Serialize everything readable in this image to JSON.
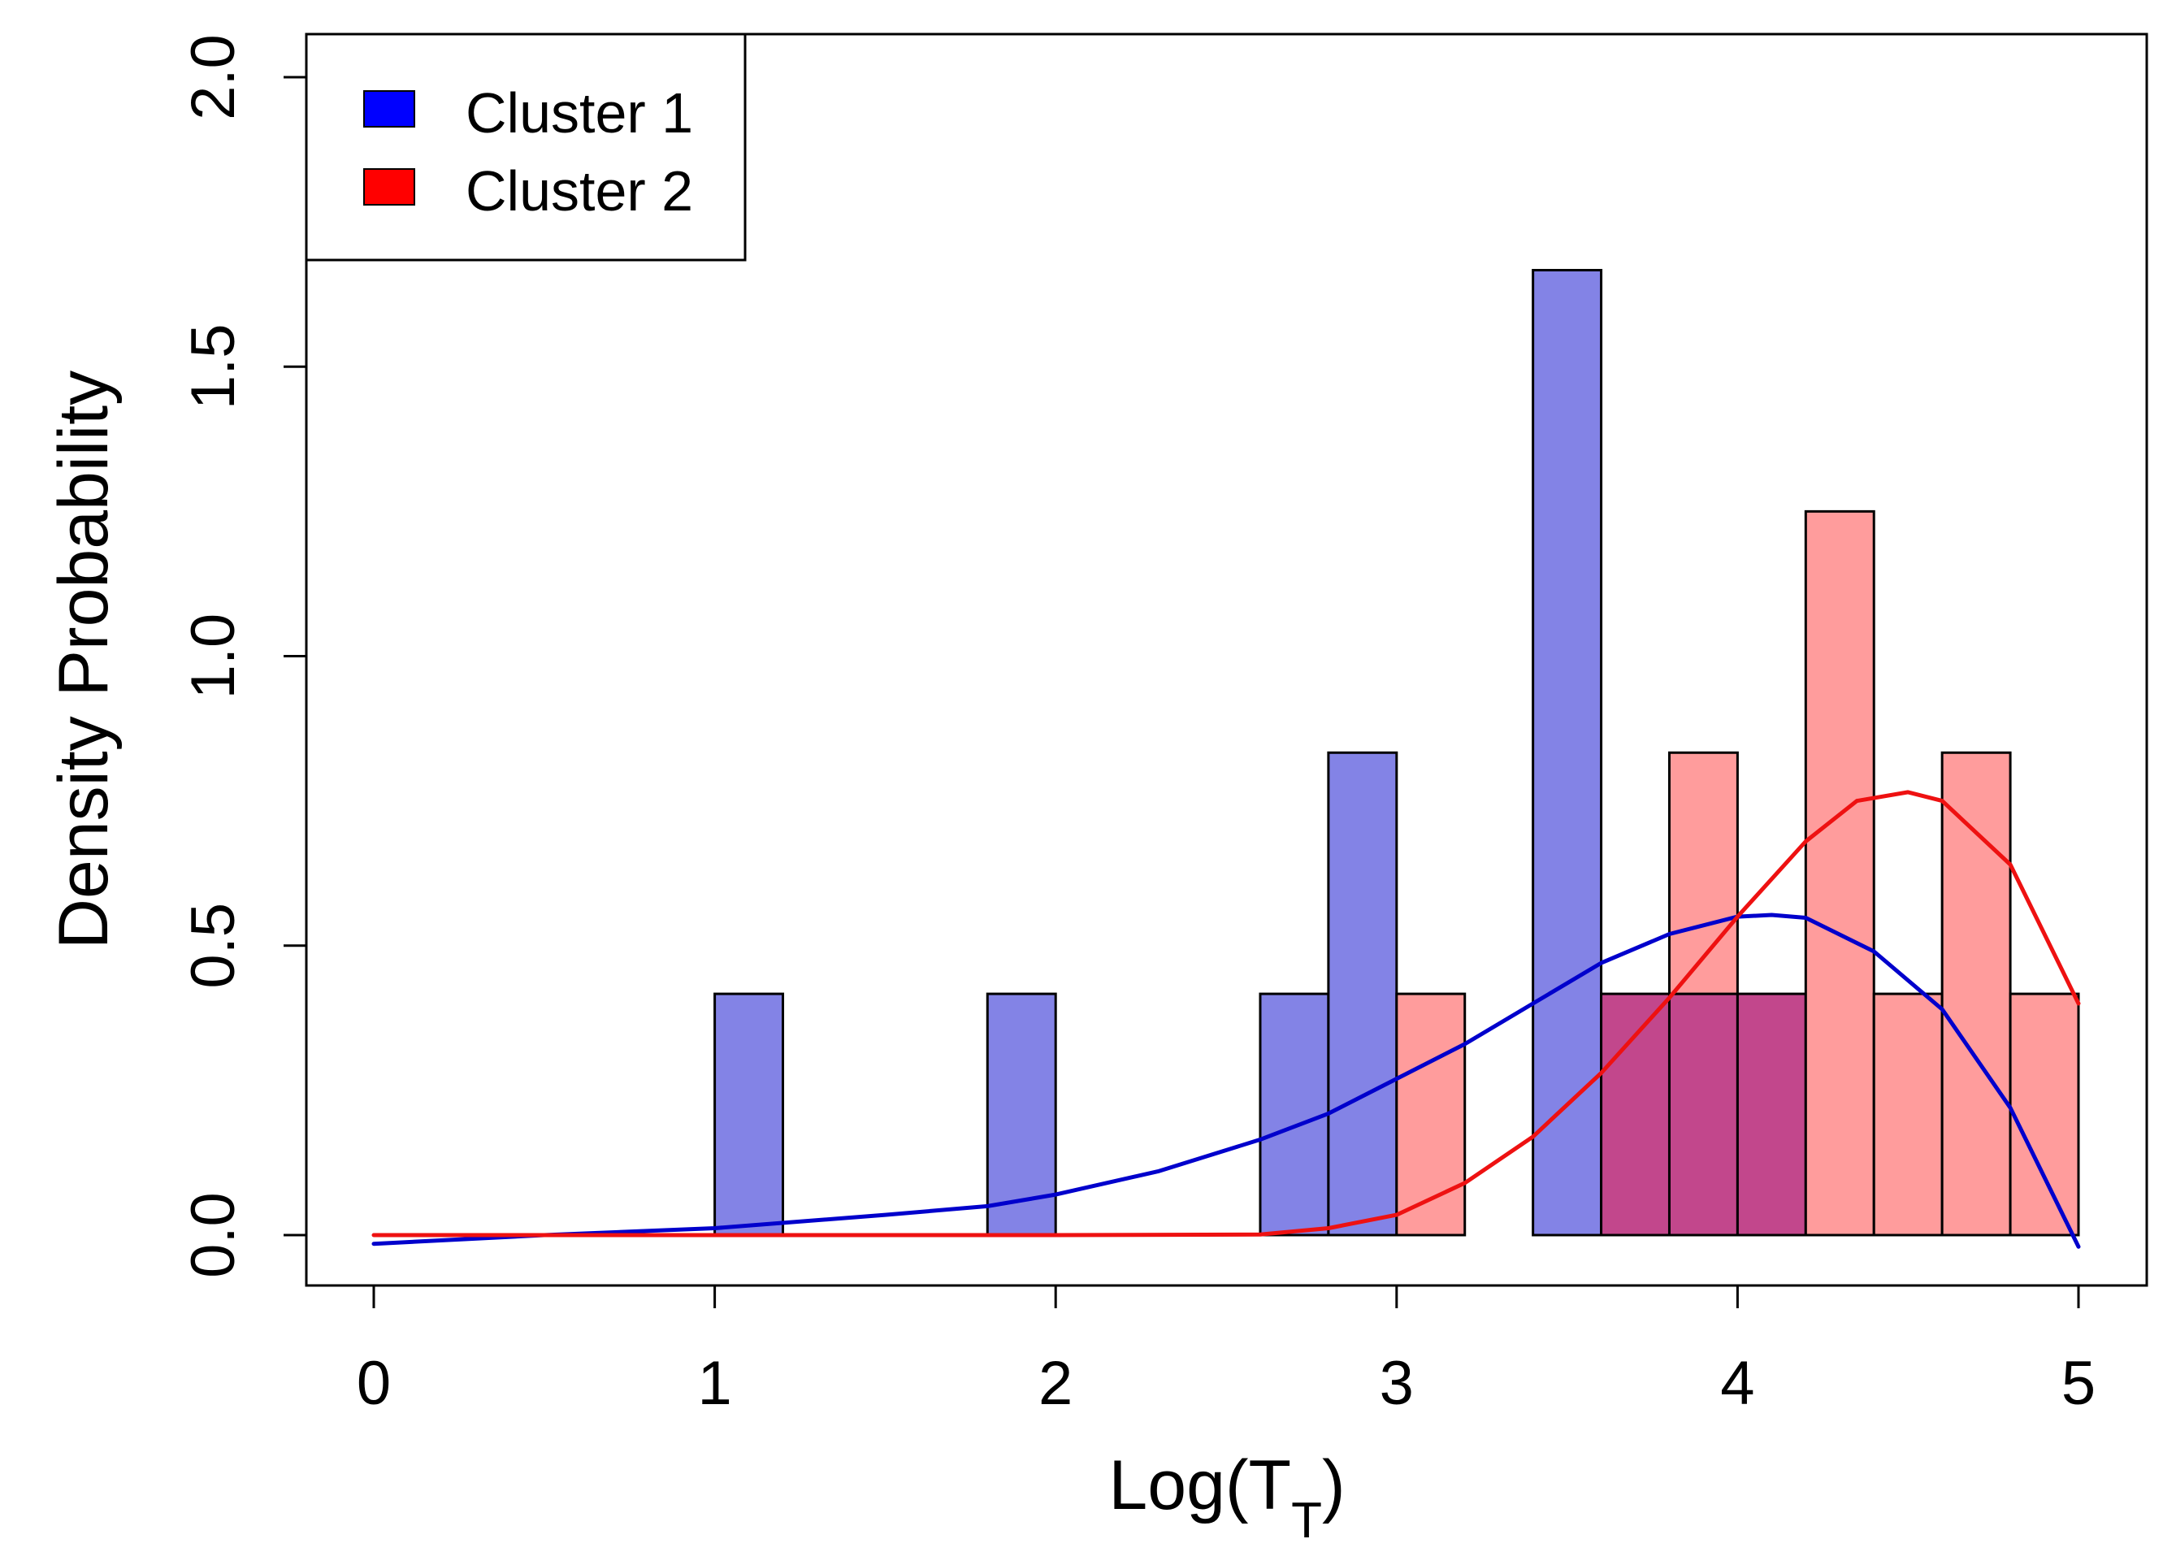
{
  "chart_data": {
    "type": "histogram",
    "title": "",
    "xlabel_main": "Log(T",
    "xlabel_sub": "T",
    "xlabel_close": ")",
    "ylabel": "Density Probability",
    "xlim": [
      0,
      5
    ],
    "ylim": [
      0,
      2.0
    ],
    "x_ticks": [
      {
        "value": 0,
        "label": "0"
      },
      {
        "value": 1,
        "label": "1"
      },
      {
        "value": 2,
        "label": "2"
      },
      {
        "value": 3,
        "label": "3"
      },
      {
        "value": 4,
        "label": "4"
      },
      {
        "value": 5,
        "label": "5"
      }
    ],
    "y_ticks": [
      {
        "value": 0.0,
        "label": "0.0"
      },
      {
        "value": 0.5,
        "label": "0.5"
      },
      {
        "value": 1.0,
        "label": "1.0"
      },
      {
        "value": 1.5,
        "label": "1.5"
      },
      {
        "value": 2.0,
        "label": "2.0"
      }
    ],
    "bin_width": 0.2,
    "series": [
      {
        "name": "Cluster 1",
        "legend_color": "#0000ff",
        "bar_color": "#8383e6",
        "bins": [
          {
            "x0": 1.0,
            "value": 0.4167
          },
          {
            "x0": 1.8,
            "value": 0.4167
          },
          {
            "x0": 2.6,
            "value": 0.4167
          },
          {
            "x0": 2.8,
            "value": 0.8333
          },
          {
            "x0": 3.4,
            "value": 1.6667
          },
          {
            "x0": 3.6,
            "value": 0.4167
          },
          {
            "x0": 3.8,
            "value": 0.4167
          },
          {
            "x0": 4.0,
            "value": 0.4167
          }
        ],
        "curve_color": "#0000cc",
        "curve": [
          [
            0.0,
            -0.015
          ],
          [
            0.5,
            0.0
          ],
          [
            1.0,
            0.012
          ],
          [
            1.5,
            0.035
          ],
          [
            1.8,
            0.05
          ],
          [
            2.0,
            0.07
          ],
          [
            2.3,
            0.11
          ],
          [
            2.6,
            0.165
          ],
          [
            2.8,
            0.21
          ],
          [
            3.0,
            0.27
          ],
          [
            3.2,
            0.33
          ],
          [
            3.4,
            0.4
          ],
          [
            3.6,
            0.47
          ],
          [
            3.8,
            0.52
          ],
          [
            4.0,
            0.55
          ],
          [
            4.1,
            0.553
          ],
          [
            4.2,
            0.548
          ],
          [
            4.4,
            0.49
          ],
          [
            4.6,
            0.39
          ],
          [
            4.8,
            0.22
          ],
          [
            5.0,
            -0.02
          ]
        ]
      },
      {
        "name": "Cluster 2",
        "legend_color": "#ff0000",
        "bar_color": "#ff9c9c",
        "bins": [
          {
            "x0": 3.0,
            "value": 0.4167
          },
          {
            "x0": 3.6,
            "value": 0.4167
          },
          {
            "x0": 3.8,
            "value": 0.8333
          },
          {
            "x0": 4.0,
            "value": 0.4167
          },
          {
            "x0": 4.2,
            "value": 1.25
          },
          {
            "x0": 4.4,
            "value": 0.4167
          },
          {
            "x0": 4.6,
            "value": 0.8333
          },
          {
            "x0": 4.8,
            "value": 0.4167
          }
        ],
        "curve_color": "#ee1111",
        "curve": [
          [
            0.0,
            0.0
          ],
          [
            1.0,
            0.0
          ],
          [
            2.0,
            0.0
          ],
          [
            2.6,
            0.001
          ],
          [
            2.8,
            0.012
          ],
          [
            3.0,
            0.035
          ],
          [
            3.2,
            0.09
          ],
          [
            3.4,
            0.17
          ],
          [
            3.6,
            0.28
          ],
          [
            3.8,
            0.41
          ],
          [
            4.0,
            0.55
          ],
          [
            4.2,
            0.68
          ],
          [
            4.35,
            0.75
          ],
          [
            4.5,
            0.765
          ],
          [
            4.6,
            0.75
          ],
          [
            4.8,
            0.64
          ],
          [
            5.0,
            0.4
          ]
        ]
      }
    ],
    "overlap_color": "#c2478c",
    "legend": {
      "position": "top-left"
    }
  }
}
